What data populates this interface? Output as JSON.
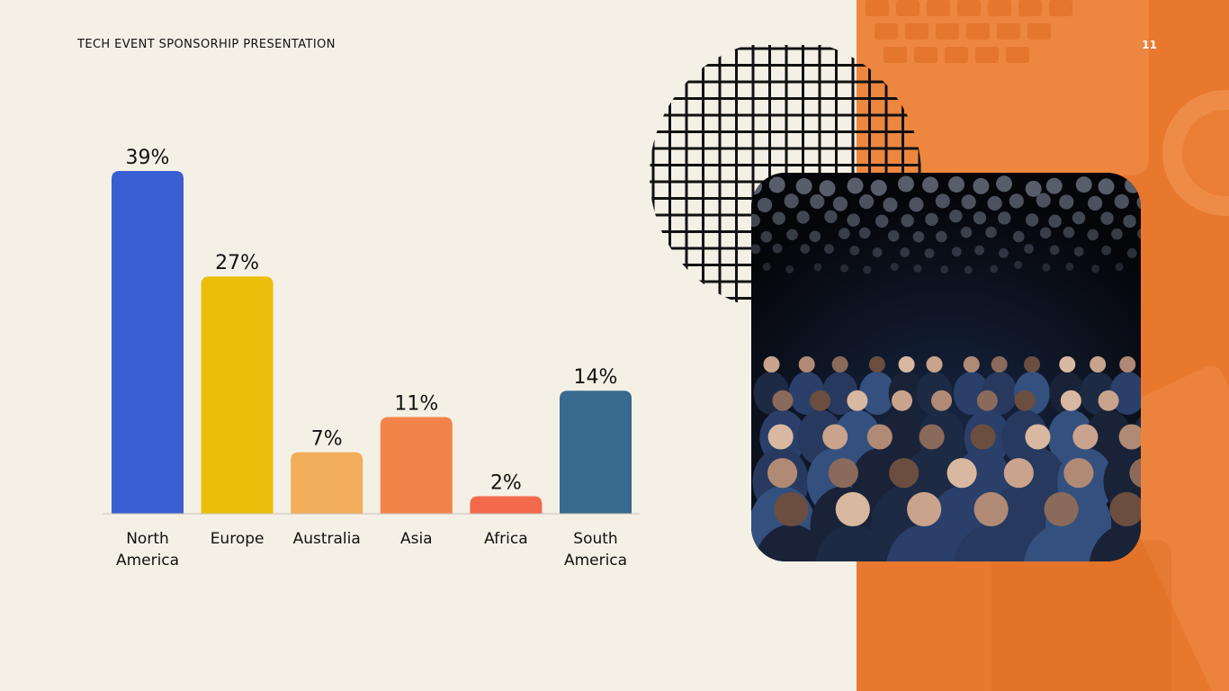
{
  "header": {
    "title": "TECH EVENT SPONSORHIP PRESENTATION",
    "page_number": "11"
  },
  "chart_data": {
    "type": "bar",
    "categories": [
      "North America",
      "Europe",
      "Australia",
      "Asia",
      "Africa",
      "South America"
    ],
    "category_lines": [
      [
        "North",
        "America"
      ],
      [
        "Europe"
      ],
      [
        "Australia"
      ],
      [
        "Asia"
      ],
      [
        "Africa"
      ],
      [
        "South",
        "America"
      ]
    ],
    "values": [
      39,
      27,
      7,
      11,
      2,
      14
    ],
    "value_labels": [
      "39%",
      "27%",
      "7%",
      "11%",
      "2%",
      "14%"
    ],
    "colors": [
      "#3a5fd2",
      "#eabe0a",
      "#f2ae5a",
      "#f2844a",
      "#f26a4b",
      "#376a8e"
    ],
    "ylim": [
      0,
      39
    ],
    "grid": false
  },
  "decor": {
    "panel_color": "#e8782e",
    "grid_icon": "checkered-grid-circle",
    "photo": "conference-audience-photo"
  }
}
